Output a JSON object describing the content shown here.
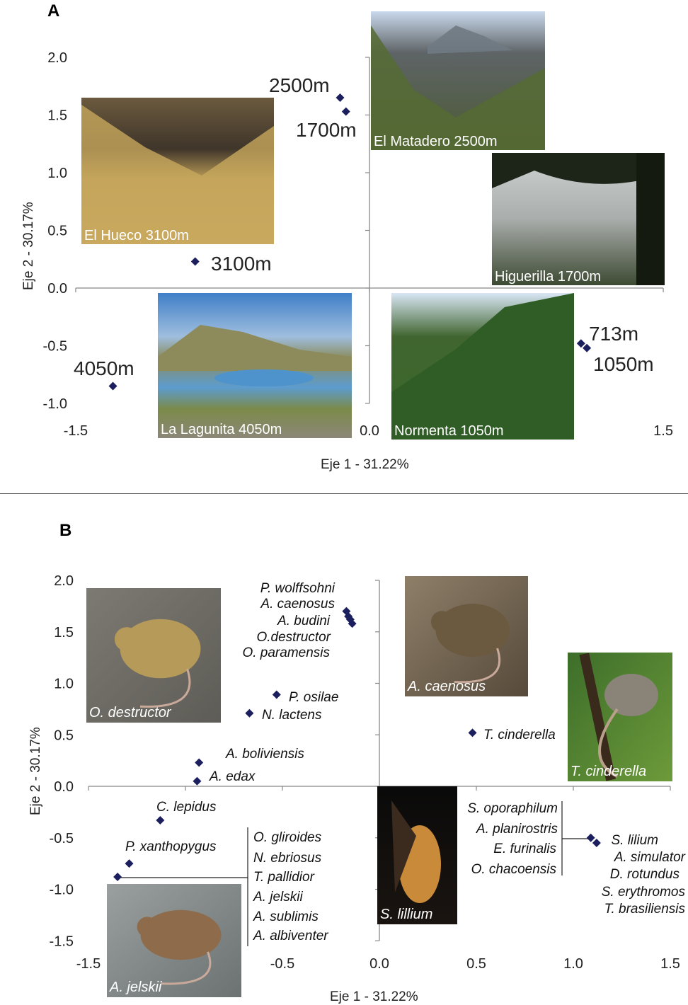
{
  "chart_data": [
    {
      "panel": "A",
      "type": "scatter",
      "xlabel": "Eje 1 - 31.22%",
      "ylabel": "Eje 2 - 30.17%",
      "xlim": [
        -1.5,
        1.5
      ],
      "ylim": [
        -1.0,
        2.0
      ],
      "x_ticks": [
        "-1.5",
        "0.0",
        "1.5"
      ],
      "y_ticks": [
        "2.0",
        "1.5",
        "1.0",
        "0.5",
        "0.0",
        "-0.5",
        "-1.0"
      ],
      "points": [
        {
          "x": -0.15,
          "y": 1.65,
          "label": ""
        },
        {
          "x": -0.12,
          "y": 1.53,
          "label": ""
        },
        {
          "x": -0.89,
          "y": 0.23,
          "label": "3100m"
        },
        {
          "x": -1.31,
          "y": -0.85,
          "label": "4050m"
        },
        {
          "x": 1.08,
          "y": -0.48,
          "label": ""
        },
        {
          "x": 1.11,
          "y": -0.52,
          "label": ""
        }
      ],
      "annotations": [
        "2500m",
        "1700m",
        "713m",
        "1050m"
      ],
      "photos": [
        {
          "caption": "El Hueco 3100m",
          "kind": "valley"
        },
        {
          "caption": "El Matadero 2500m",
          "kind": "mountain"
        },
        {
          "caption": "Higuerilla 1700m",
          "kind": "forest"
        },
        {
          "caption": "La Lagunita 4050m",
          "kind": "lake"
        },
        {
          "caption": "Normenta 1050m",
          "kind": "hill"
        }
      ]
    },
    {
      "panel": "B",
      "type": "scatter",
      "xlabel": "Eje 1 - 31.22%",
      "ylabel": "Eje 2 - 30.17%",
      "xlim": [
        -1.5,
        1.5
      ],
      "ylim": [
        -1.5,
        2.0
      ],
      "x_ticks": [
        "-1.5",
        "-1.0",
        "-0.5",
        "0.0",
        "0.5",
        "1.0",
        "1.5"
      ],
      "y_ticks": [
        "2.0",
        "1.5",
        "1.0",
        "0.5",
        "0.0",
        "-0.5",
        "-1.0",
        "-1.5"
      ],
      "points": [
        {
          "x": -0.17,
          "y": 1.7,
          "label": ""
        },
        {
          "x": -0.16,
          "y": 1.65,
          "label": ""
        },
        {
          "x": -0.15,
          "y": 1.62,
          "label": ""
        },
        {
          "x": -0.14,
          "y": 1.58,
          "label": ""
        },
        {
          "x": -0.53,
          "y": 0.89,
          "label": "P. osilae"
        },
        {
          "x": -0.67,
          "y": 0.71,
          "label": "N. lactens"
        },
        {
          "x": 0.48,
          "y": 0.52,
          "label": "T. cinderella"
        },
        {
          "x": -0.93,
          "y": 0.23,
          "label": ""
        },
        {
          "x": -0.94,
          "y": 0.05,
          "label": "A. edax"
        },
        {
          "x": -1.13,
          "y": -0.33,
          "label": ""
        },
        {
          "x": -1.29,
          "y": -0.75,
          "label": ""
        },
        {
          "x": -1.35,
          "y": -0.88,
          "label": ""
        },
        {
          "x": 1.09,
          "y": -0.5,
          "label": ""
        },
        {
          "x": 1.12,
          "y": -0.55,
          "label": ""
        }
      ],
      "group_top": [
        "P. wolffsohni",
        "A. caenosus",
        "A. budini",
        "O.destructor",
        "O. paramensis"
      ],
      "aboliviensis": "A. boliviensis",
      "clepidus": "C. lepidus",
      "pxanthopygus": "P. xanthopygus",
      "group_left_bottom": [
        "O. gliroides",
        "N. ebriosus",
        "T. pallidior",
        "A. jelskii",
        "A. sublimis",
        "A. albiventer"
      ],
      "group_right_left": [
        "S. oporaphilum",
        "A. planirostris",
        "E. furinalis",
        "O. chacoensis"
      ],
      "group_right_right": [
        "S. lilium",
        "A. simulator",
        "D. rotundus",
        "S. erythromos",
        "T. brasiliensis"
      ],
      "photos": [
        {
          "caption": "O. destructor",
          "kind": "rodent-tan"
        },
        {
          "caption": "A. caenosus",
          "kind": "rodent-dark"
        },
        {
          "caption": "T. cinderella",
          "kind": "opossum"
        },
        {
          "caption": "S. lillium",
          "kind": "bat"
        },
        {
          "caption": "A. jelskii",
          "kind": "rodent-brown"
        }
      ]
    }
  ],
  "marker_color": "#1b1f5e"
}
